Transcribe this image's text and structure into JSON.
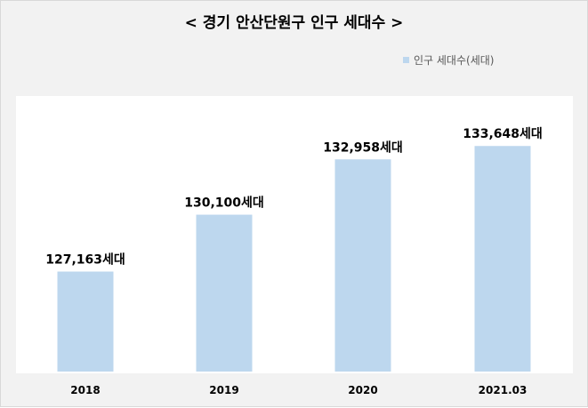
{
  "chart_data": {
    "type": "bar",
    "title": "< 경기 안산단원구 인구 세대수 >",
    "legend": [
      "인구 세대수(세대)"
    ],
    "legend_position": "top-right",
    "categories": [
      "2018",
      "2019",
      "2020",
      "2021.03"
    ],
    "series": [
      {
        "name": "인구 세대수(세대)",
        "values": [
          127163,
          130100,
          132958,
          133648
        ],
        "labels": [
          "127,163세대",
          "130,100세대",
          "132,958세대",
          "133,648세대"
        ],
        "color": "#bdd7ee"
      }
    ],
    "ylim": [
      122000,
      136000
    ],
    "grid": false
  }
}
